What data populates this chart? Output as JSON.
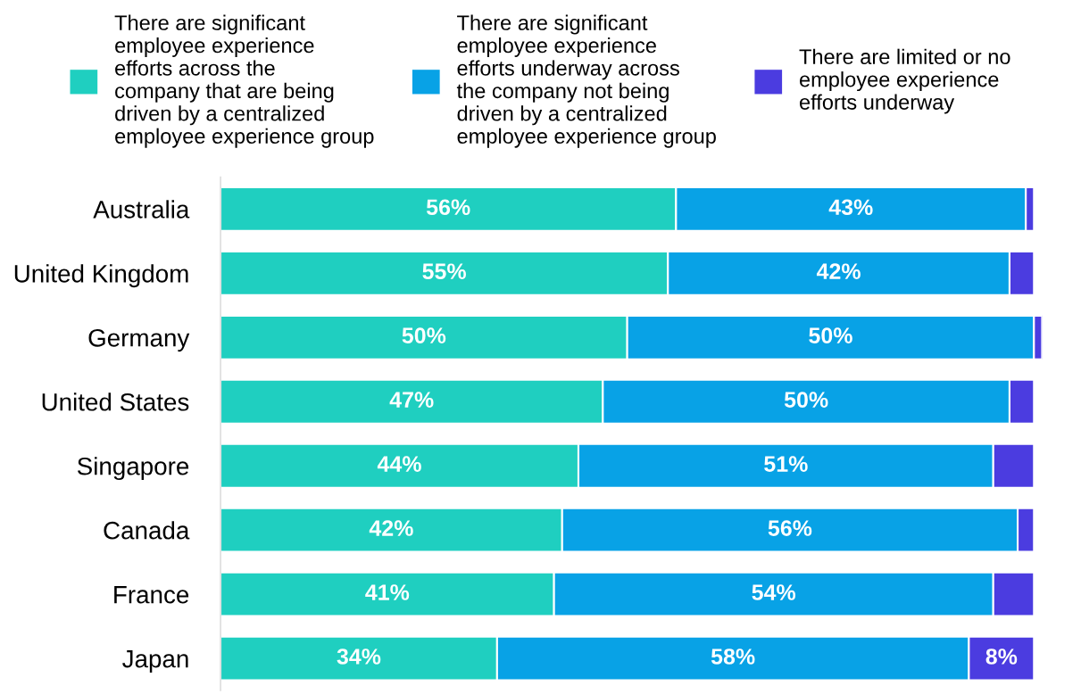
{
  "chart_data": {
    "type": "bar",
    "orientation": "horizontal",
    "stacked": true,
    "legend": "top",
    "grid": false,
    "tick_labels": "y",
    "xlim": [
      0,
      101
    ],
    "categories": [
      "Australia",
      "United Kingdom",
      "Germany",
      "United States",
      "Singapore",
      "Canada",
      "France",
      "Japan"
    ],
    "series": [
      {
        "name": "There are significant employee experience efforts across the company that are being driven by a centralized employee experience group",
        "color": "#1fcfc0",
        "values": [
          56,
          55,
          50,
          47,
          44,
          42,
          41,
          34
        ],
        "value_labels": [
          "56%",
          "55%",
          "50%",
          "47%",
          "44%",
          "42%",
          "41%",
          "34%"
        ]
      },
      {
        "name": "There are significant employee experience efforts underway across the company not being driven by a centralized employee experience group",
        "color": "#08a2e6",
        "values": [
          43,
          42,
          50,
          50,
          51,
          56,
          54,
          58
        ],
        "value_labels": [
          "43%",
          "42%",
          "50%",
          "50%",
          "51%",
          "56%",
          "54%",
          "58%"
        ]
      },
      {
        "name": "There are limited or no employee experience efforts underway",
        "color": "#4b3ce0",
        "values": [
          1,
          3,
          1,
          3,
          5,
          2,
          5,
          8
        ],
        "value_labels": [
          null,
          null,
          null,
          null,
          null,
          null,
          null,
          "8%"
        ]
      }
    ]
  }
}
